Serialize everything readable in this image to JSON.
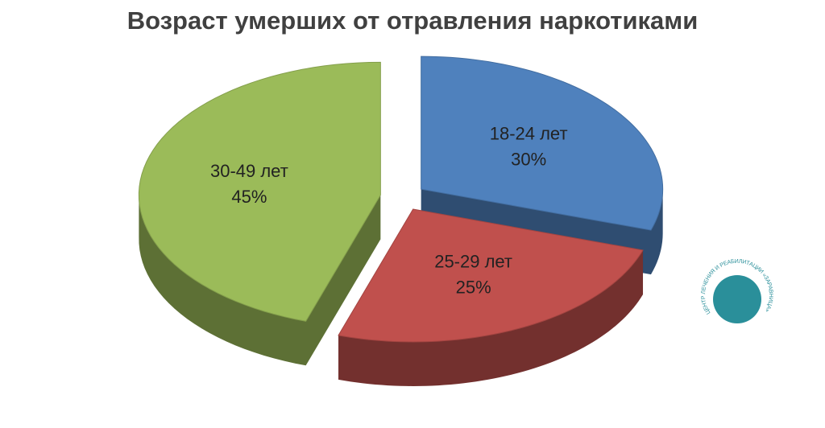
{
  "chart_data": {
    "type": "pie",
    "title": "Возраст умерших от отравления наркотиками",
    "categories": [
      "18-24 лет",
      "25-29 лет",
      "30-49 лет"
    ],
    "values": [
      30,
      25,
      45
    ],
    "value_labels": [
      "30%",
      "25%",
      "45%"
    ],
    "colors": [
      "#4f81bd",
      "#c0504d",
      "#9bbb59"
    ]
  },
  "watermark": "ЦЕНТР ЛЕЧЕНИЯ И РЕАБИЛИТАЦИИ «ЗАРАВНИЦА»"
}
